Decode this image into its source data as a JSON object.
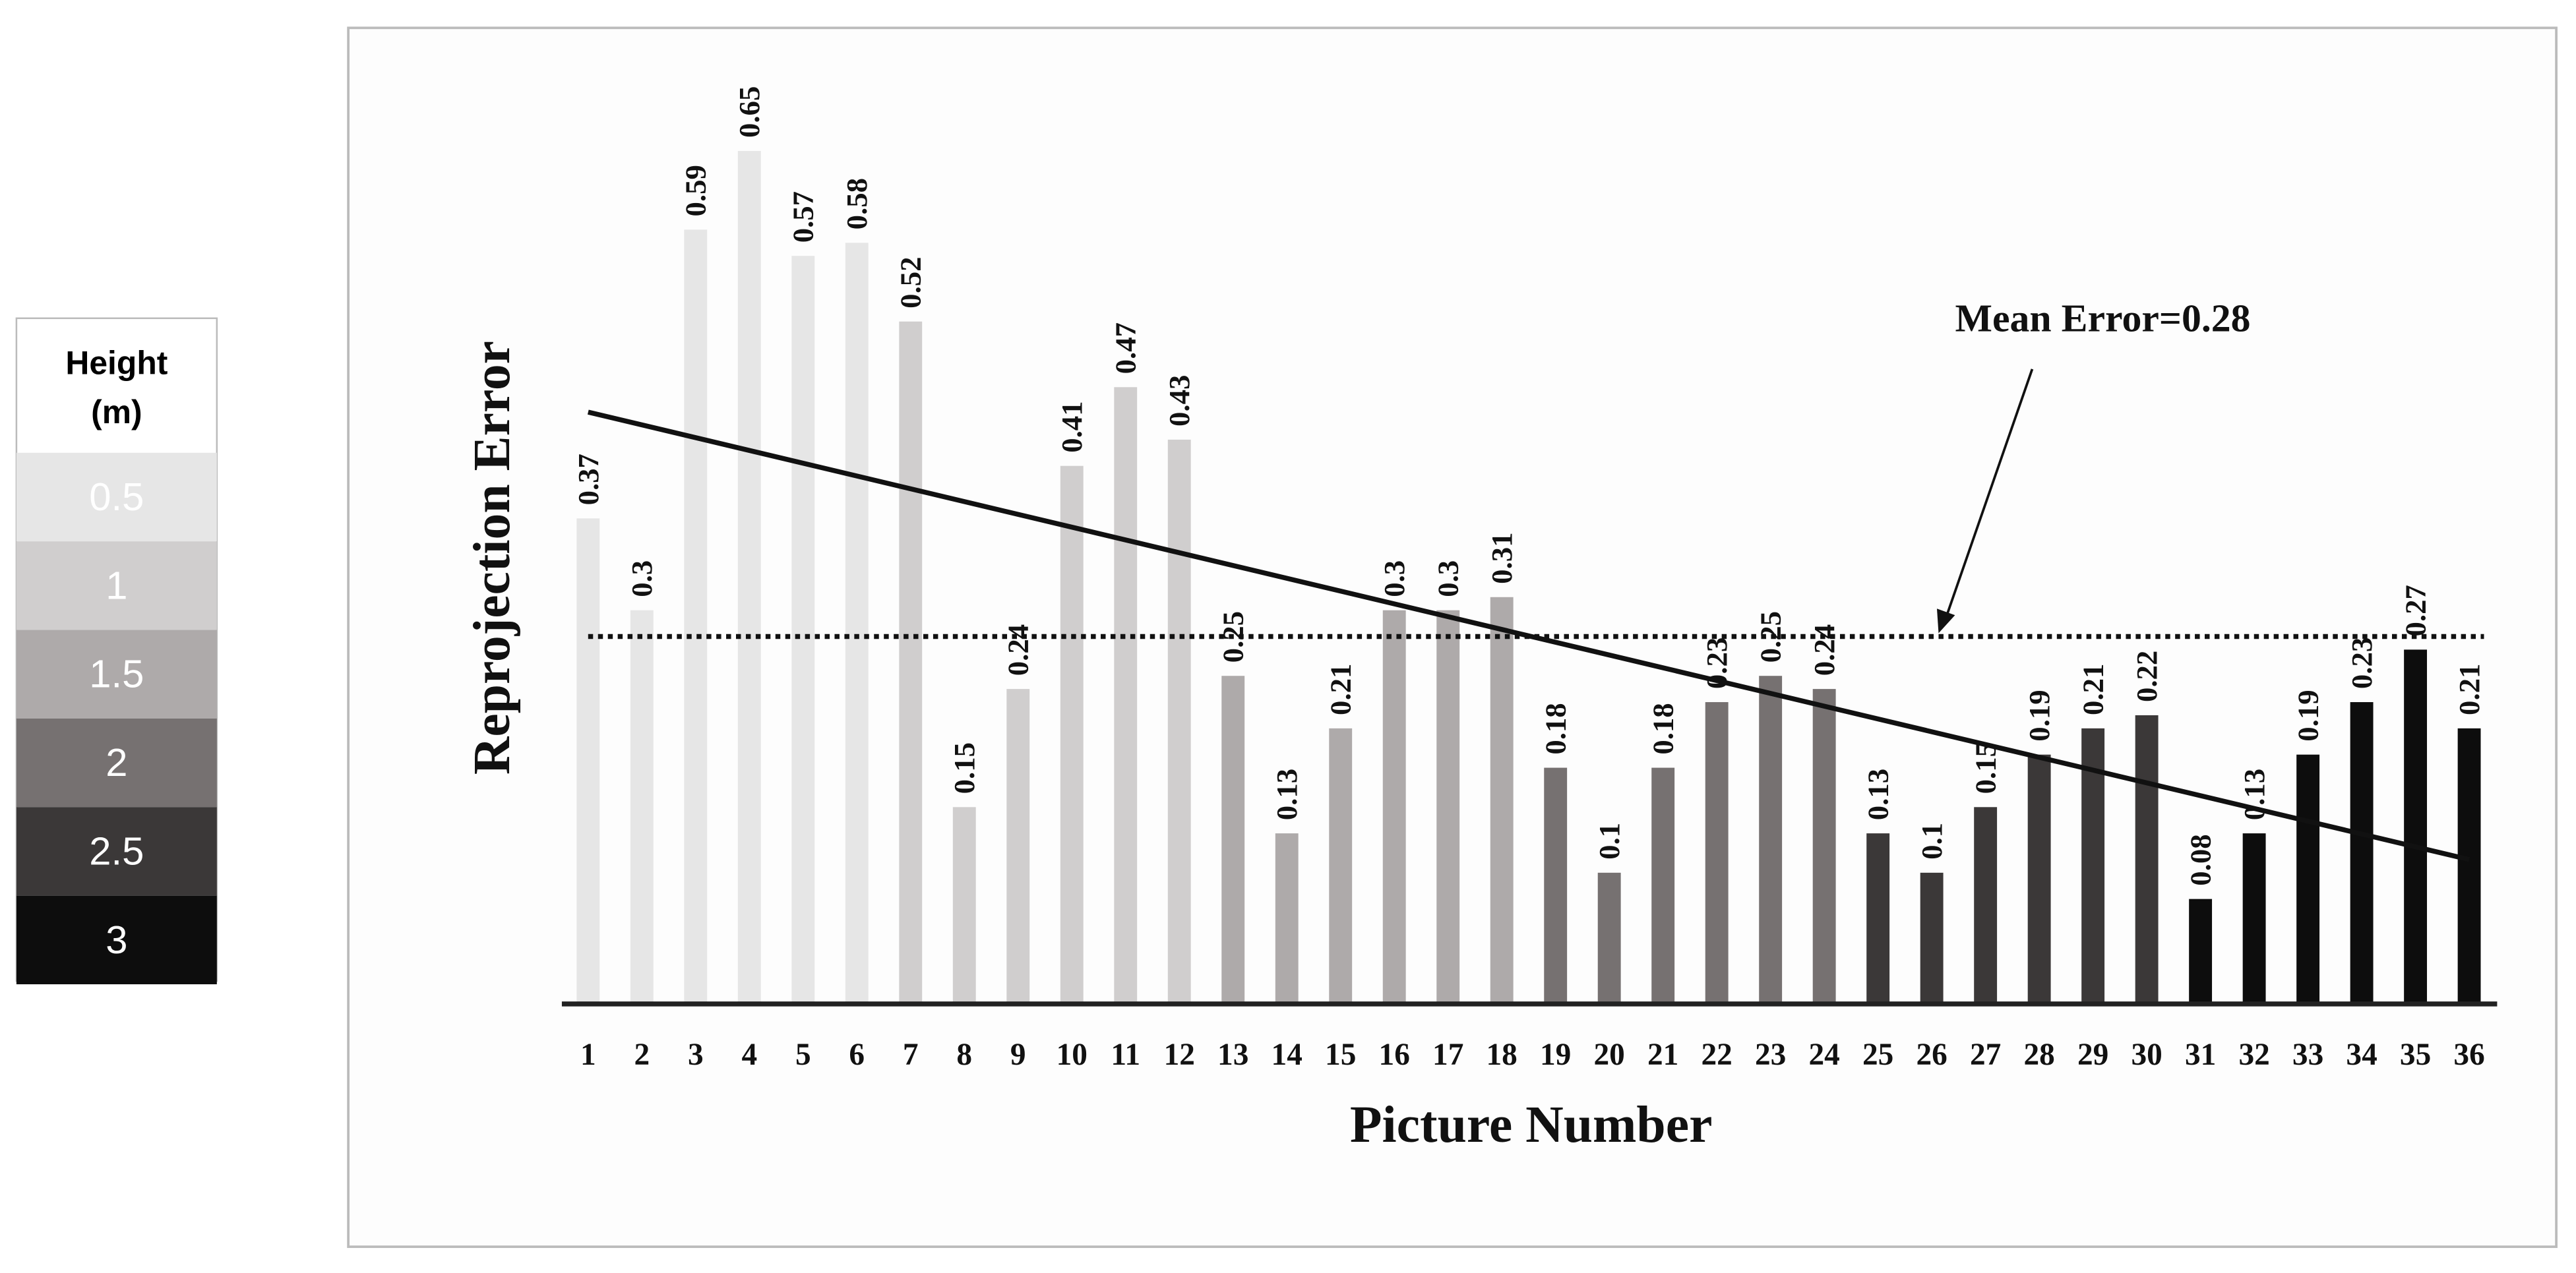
{
  "chart_data": {
    "type": "bar",
    "x_label": "Picture Number",
    "y_label": "Reprojection Error",
    "legend_title": "Height (m)",
    "annotation": "Mean Error=0.28",
    "mean": 0.28,
    "trendline": [
      0.451,
      0.11
    ],
    "ylim": [
      0,
      0.7
    ],
    "categories": [
      "1",
      "2",
      "3",
      "4",
      "5",
      "6",
      "7",
      "8",
      "9",
      "10",
      "11",
      "12",
      "13",
      "14",
      "15",
      "16",
      "17",
      "18",
      "19",
      "20",
      "21",
      "22",
      "23",
      "24",
      "25",
      "26",
      "27",
      "28",
      "29",
      "30",
      "31",
      "32",
      "33",
      "34",
      "35",
      "36"
    ],
    "series": [
      {
        "name": "0.5",
        "color": "#e6e6e6",
        "values": [
          0.37,
          0.3,
          0.59,
          0.65,
          0.57,
          0.58,
          null,
          null,
          null,
          null,
          null,
          null,
          null,
          null,
          null,
          null,
          null,
          null,
          null,
          null,
          null,
          null,
          null,
          null,
          null,
          null,
          null,
          null,
          null,
          null,
          null,
          null,
          null,
          null,
          null,
          null
        ]
      },
      {
        "name": "1",
        "color": "#d0cece",
        "values": [
          null,
          null,
          null,
          null,
          null,
          null,
          0.52,
          0.15,
          0.24,
          0.41,
          0.47,
          0.43,
          null,
          null,
          null,
          null,
          null,
          null,
          null,
          null,
          null,
          null,
          null,
          null,
          null,
          null,
          null,
          null,
          null,
          null,
          null,
          null,
          null,
          null,
          null,
          null
        ]
      },
      {
        "name": "1.5",
        "color": "#aeaaaa",
        "values": [
          null,
          null,
          null,
          null,
          null,
          null,
          null,
          null,
          null,
          null,
          null,
          null,
          0.25,
          0.13,
          0.21,
          0.3,
          0.3,
          0.31,
          null,
          null,
          null,
          null,
          null,
          null,
          null,
          null,
          null,
          null,
          null,
          null,
          null,
          null,
          null,
          null,
          null,
          null
        ]
      },
      {
        "name": "2",
        "color": "#767171",
        "values": [
          null,
          null,
          null,
          null,
          null,
          null,
          null,
          null,
          null,
          null,
          null,
          null,
          null,
          null,
          null,
          null,
          null,
          null,
          0.18,
          0.1,
          0.18,
          0.23,
          0.25,
          0.24,
          null,
          null,
          null,
          null,
          null,
          null,
          null,
          null,
          null,
          null,
          null,
          null
        ]
      },
      {
        "name": "2.5",
        "color": "#3b3838",
        "values": [
          null,
          null,
          null,
          null,
          null,
          null,
          null,
          null,
          null,
          null,
          null,
          null,
          null,
          null,
          null,
          null,
          null,
          null,
          null,
          null,
          null,
          null,
          null,
          null,
          0.13,
          0.1,
          0.15,
          0.19,
          0.21,
          0.22,
          null,
          null,
          null,
          null,
          null,
          null
        ]
      },
      {
        "name": "3",
        "color": "#0d0d0d",
        "values": [
          null,
          null,
          null,
          null,
          null,
          null,
          null,
          null,
          null,
          null,
          null,
          null,
          null,
          null,
          null,
          null,
          null,
          null,
          null,
          null,
          null,
          null,
          null,
          null,
          null,
          null,
          null,
          null,
          null,
          null,
          0.08,
          0.13,
          0.19,
          0.23,
          0.27,
          0.21
        ]
      }
    ]
  }
}
